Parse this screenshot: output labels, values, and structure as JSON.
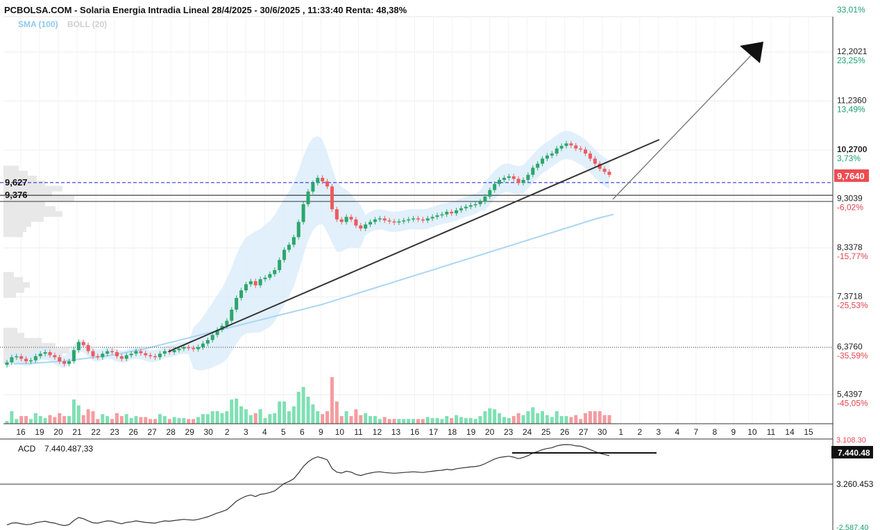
{
  "header": {
    "title": "PCBOLSA.COM - Solaria Energia Intradia Lineal 28/4/2025 - 30/6/2025 , 11:33:40 Renta: 48,38%",
    "sma_label": "SMA (100)",
    "boll_label": "BOLL (20)"
  },
  "chart_data": {
    "type": "candlestick",
    "title": "PCBOLSA.COM - Solaria Energia Intradia Lineal 28/4/2025 - 30/6/2025 , 11:33:40 Renta: 48,38%",
    "x_tick_labels": [
      "16",
      "19",
      "20",
      "21",
      "22",
      "23",
      "26",
      "27",
      "28",
      "29",
      "30",
      "2",
      "3",
      "4",
      "5",
      "6",
      "9",
      "10",
      "11",
      "12",
      "13",
      "16",
      "17",
      "18",
      "19",
      "20",
      "23",
      "24",
      "25",
      "26",
      "27",
      "30",
      "1",
      "2",
      "3",
      "4",
      "7",
      "8",
      "9",
      "10",
      "11",
      "14",
      "15"
    ],
    "price_ticks": [
      {
        "value": 12.2021,
        "label": "12,2021",
        "pct": "23,25%"
      },
      {
        "value": 11.236,
        "label": "11,2360",
        "pct": "13,49%"
      },
      {
        "value": 10.27,
        "label": "10,2700",
        "pct": "3,73%"
      },
      {
        "value": 9.3039,
        "label": "9,3039",
        "pct": "-6,02%"
      },
      {
        "value": 8.3378,
        "label": "8,3378",
        "pct": "-15,77%"
      },
      {
        "value": 7.3718,
        "label": "7,3718",
        "pct": "-25,53%"
      },
      {
        "value": 6.376,
        "label": "6,3760",
        "pct": "-35,59%"
      },
      {
        "value": 5.4397,
        "label": "5,4397",
        "pct": "-45,05%"
      }
    ],
    "top_pct_label": "33,01%",
    "ylim": [
      5.2,
      13.0
    ],
    "current_price": {
      "value": 9.764,
      "label": "9,7640"
    },
    "levels": [
      {
        "value": 9.627,
        "label": "9,627",
        "style": "dashed",
        "color": "#1a1ad6"
      },
      {
        "value": 9.376,
        "label": "9,376",
        "style": "solid",
        "color": "#111111"
      },
      {
        "value": 9.254,
        "label": "",
        "style": "solid",
        "color": "#333333"
      },
      {
        "value": 6.376,
        "label": "",
        "style": "dotted",
        "color": "#333333"
      }
    ],
    "close": [
      6.08,
      6.18,
      6.2,
      6.15,
      6.1,
      6.12,
      6.2,
      6.25,
      6.28,
      6.22,
      6.18,
      6.1,
      6.05,
      6.1,
      6.32,
      6.48,
      6.42,
      6.3,
      6.2,
      6.18,
      6.25,
      6.3,
      6.28,
      6.2,
      6.15,
      6.22,
      6.25,
      6.3,
      6.26,
      6.22,
      6.2,
      6.18,
      6.25,
      6.3,
      6.28,
      6.32,
      6.35,
      6.38,
      6.36,
      6.34,
      6.38,
      6.45,
      6.52,
      6.62,
      6.72,
      6.8,
      6.9,
      7.12,
      7.35,
      7.5,
      7.62,
      7.68,
      7.6,
      7.72,
      7.75,
      7.82,
      7.9,
      8.1,
      8.3,
      8.4,
      8.55,
      8.85,
      9.2,
      9.45,
      9.62,
      9.72,
      9.65,
      9.55,
      9.1,
      8.9,
      8.85,
      8.95,
      8.9,
      8.78,
      8.72,
      8.8,
      8.85,
      8.9,
      8.92,
      8.88,
      8.86,
      8.84,
      8.86,
      8.88,
      8.9,
      8.92,
      8.9,
      8.88,
      8.92,
      8.95,
      8.98,
      9.0,
      9.05,
      9.02,
      9.08,
      9.12,
      9.15,
      9.18,
      9.2,
      9.25,
      9.35,
      9.48,
      9.6,
      9.68,
      9.72,
      9.75,
      9.7,
      9.62,
      9.68,
      9.78,
      9.92,
      10.0,
      10.1,
      10.16,
      10.2,
      10.3,
      10.35,
      10.4,
      10.36,
      10.3,
      10.28,
      10.2,
      10.1,
      10.0,
      9.9,
      9.84,
      9.78
    ],
    "sma_100": [
      6.05,
      6.06,
      6.08,
      6.1,
      6.14,
      6.18,
      6.22,
      6.28,
      6.34,
      6.42,
      6.5,
      6.58,
      6.66,
      6.74,
      6.82,
      6.9,
      6.98,
      7.06,
      7.14,
      7.22,
      7.32,
      7.42,
      7.52,
      7.62,
      7.72,
      7.82,
      7.92,
      8.02,
      8.12,
      8.22,
      8.32,
      8.42,
      8.52,
      8.62,
      8.72,
      8.82,
      8.92,
      9.0
    ],
    "volume_label": "",
    "indicator": {
      "name": "ACD",
      "value_label": "7.440.487,33",
      "current_box": "7.440.48",
      "tick_labels": [
        "3.260.453",
        "3.108.30",
        "-2.587.40"
      ]
    }
  }
}
